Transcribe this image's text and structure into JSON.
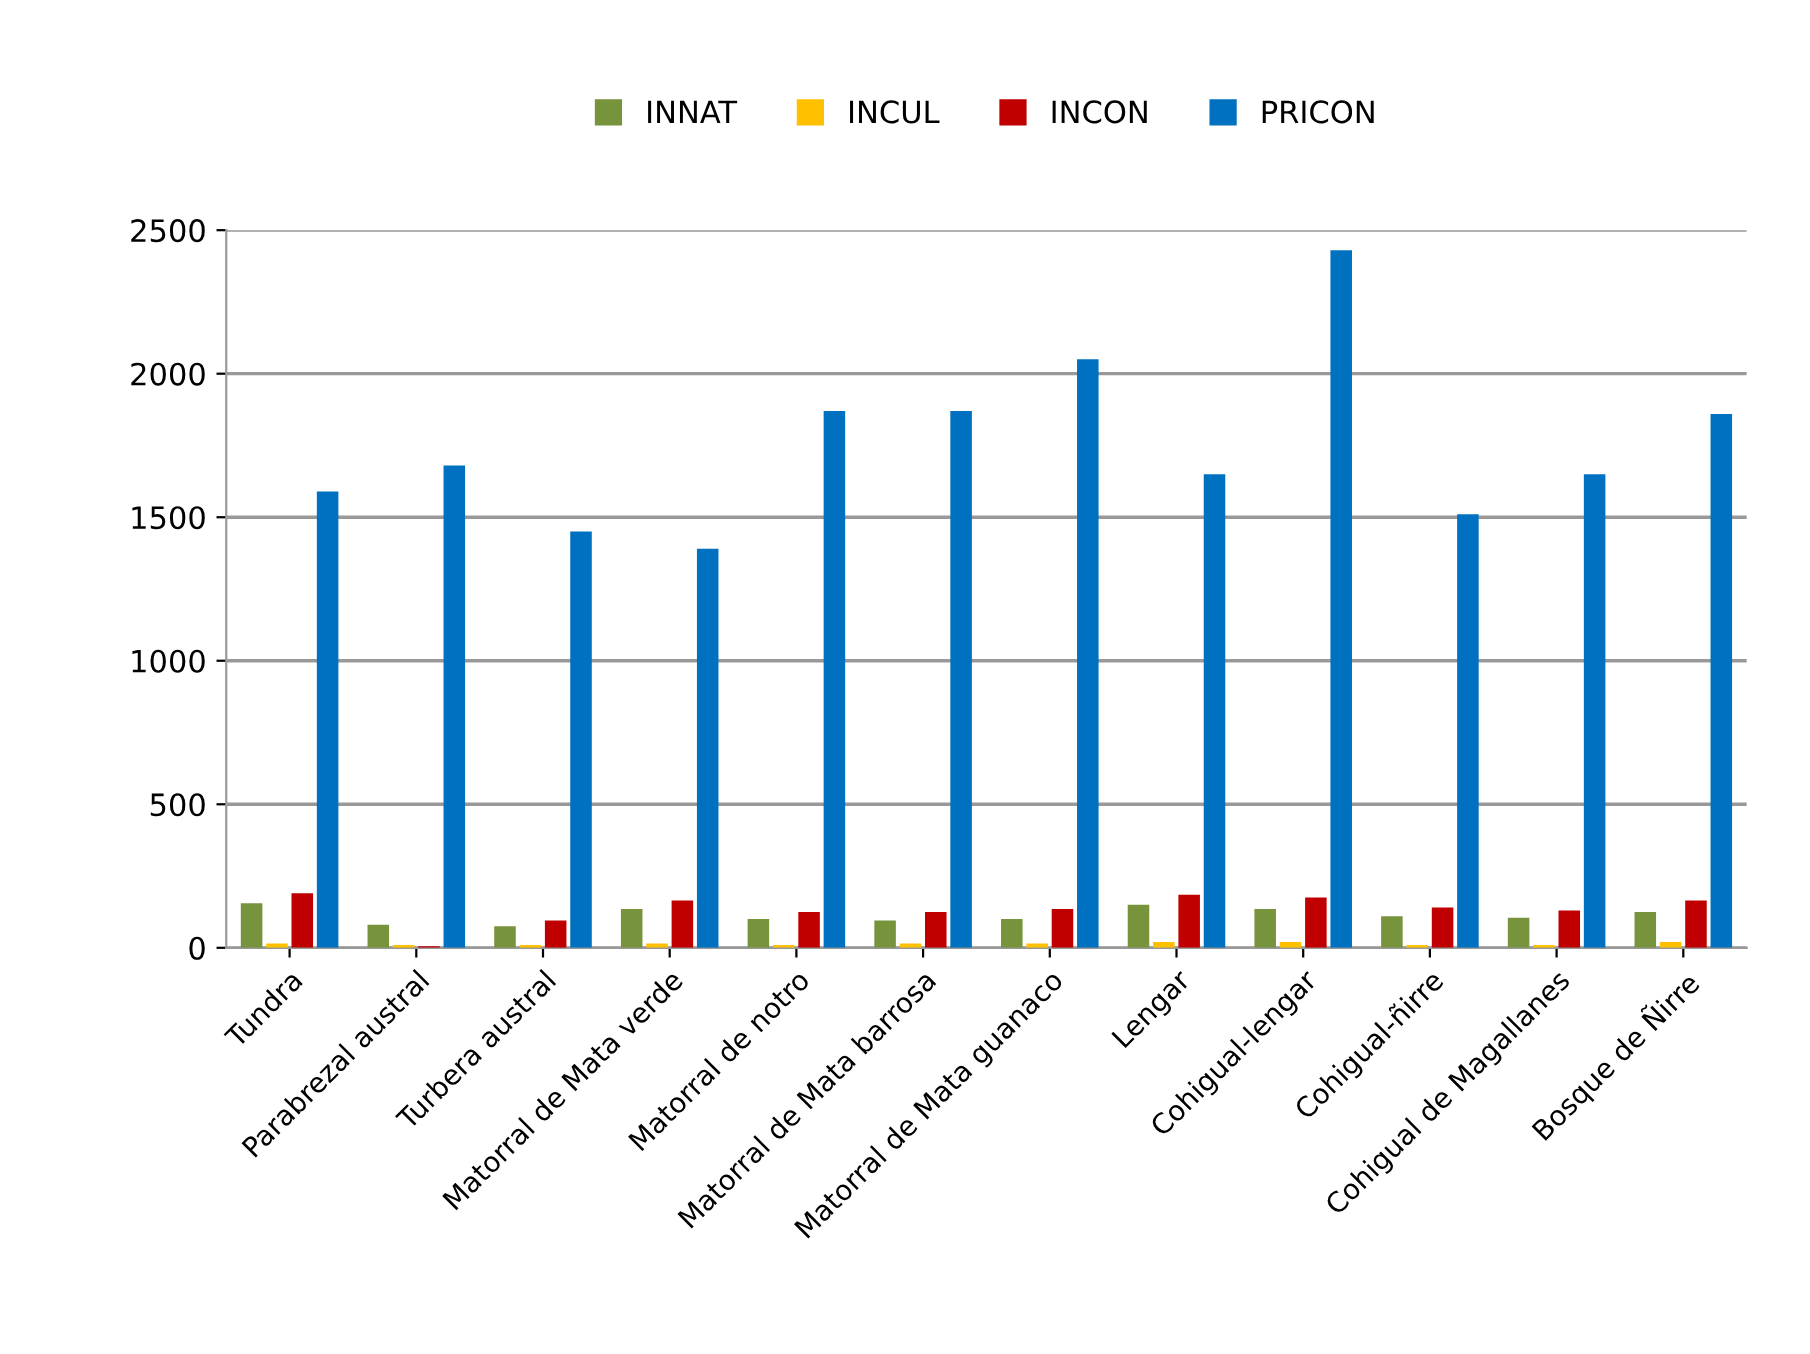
{
  "chart_data": {
    "type": "bar",
    "categories": [
      "Tundra",
      "Parabrezal austral",
      "Turbera austral",
      "Matorral de Mata verde",
      "Matorral de notro",
      "Matorral de Mata barrosa",
      "Matorral de Mata guanaco",
      "Lengar",
      "Cohigual-lengar",
      "Cohigual-ñirre",
      "Cohigual de Magallanes",
      "Bosque de Ñirre"
    ],
    "series": [
      {
        "name": "INNAT",
        "color": "#77933c",
        "values": [
          155,
          80,
          75,
          135,
          100,
          95,
          100,
          150,
          135,
          110,
          105,
          125
        ]
      },
      {
        "name": "INCUL",
        "color": "#ffc000",
        "values": [
          15,
          10,
          10,
          15,
          10,
          15,
          15,
          20,
          20,
          10,
          10,
          20
        ]
      },
      {
        "name": "INCON",
        "color": "#c00000",
        "values": [
          190,
          5,
          95,
          165,
          125,
          125,
          135,
          185,
          175,
          140,
          130,
          165
        ]
      },
      {
        "name": "PRICON",
        "color": "#0070c0",
        "values": [
          1590,
          1680,
          1450,
          1390,
          1870,
          1870,
          2050,
          1650,
          2430,
          1510,
          1650,
          1860
        ]
      }
    ],
    "ylim": [
      0,
      2500
    ],
    "yticks": [
      0,
      500,
      1000,
      1500,
      2000,
      2500
    ],
    "grid": "y",
    "legend": "top"
  }
}
